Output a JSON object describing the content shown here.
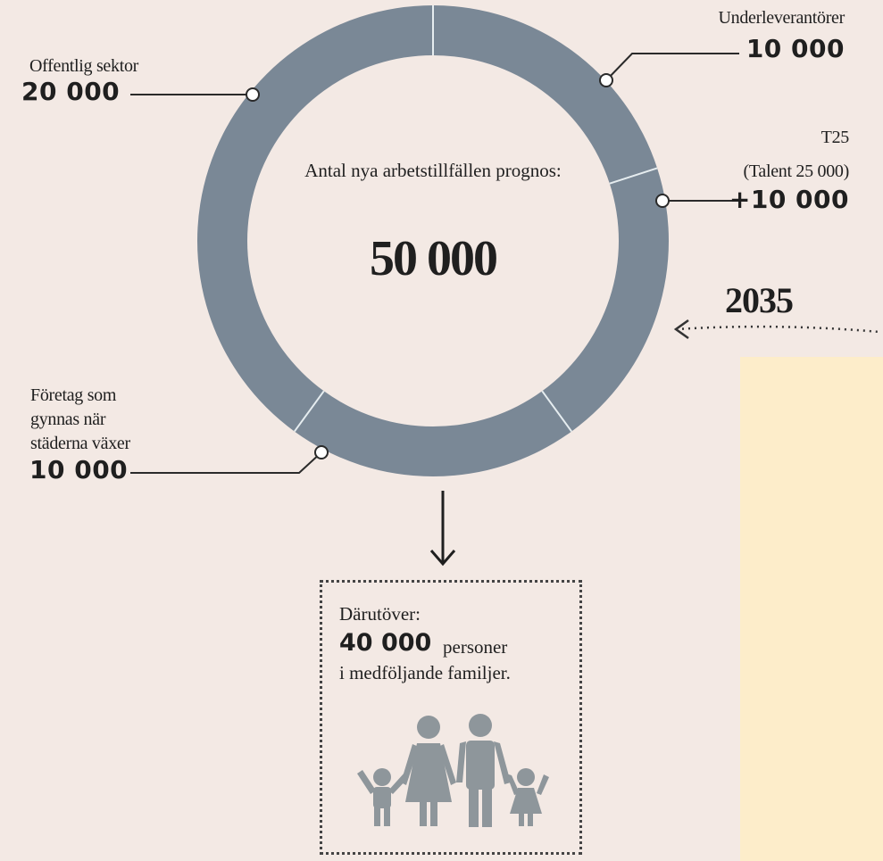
{
  "chart_data": {
    "type": "pie",
    "center_title": "Antal nya arbetstillfällen prognos:",
    "center_value": "50 000",
    "series": [
      {
        "label": "Underleverantörer",
        "value_text": "10 000",
        "value": 10000,
        "color": "#7a8896"
      },
      {
        "label": "T25 (Talent 25 000)",
        "value_text": "+10 000",
        "value": 10000,
        "color": "#7a8896"
      },
      {
        "label": "Företag som gynnas när städerna växer",
        "value_text": "10 000",
        "value": 10000,
        "color": "#7a8896"
      },
      {
        "label": "Offentlig sektor",
        "value_text": "20 000",
        "value": 20000,
        "color": "#7a8896"
      }
    ]
  },
  "labels": {
    "underleverantorer": "Underleverantörer",
    "underleverantorer_value": "10 000",
    "t25_line1": "T25",
    "t25_line2": "(Talent 25 000)",
    "t25_value": "+10 000",
    "offentlig": "Offentlig sektor",
    "offentlig_value": "20 000",
    "foretag_line1": "Företag som",
    "foretag_line2": "gynnas när",
    "foretag_line3": "städerna växer",
    "foretag_value": "10 000"
  },
  "year": "2035",
  "extra": {
    "title": "Därutöver:",
    "number": "40 000",
    "unit": "personer",
    "line2": "i medföljande familjer.",
    "icon": "family-icon"
  },
  "colors": {
    "ring": "#7a8896",
    "background": "#f3e9e4",
    "panel": "#fdedca",
    "icon": "#8e969b"
  }
}
